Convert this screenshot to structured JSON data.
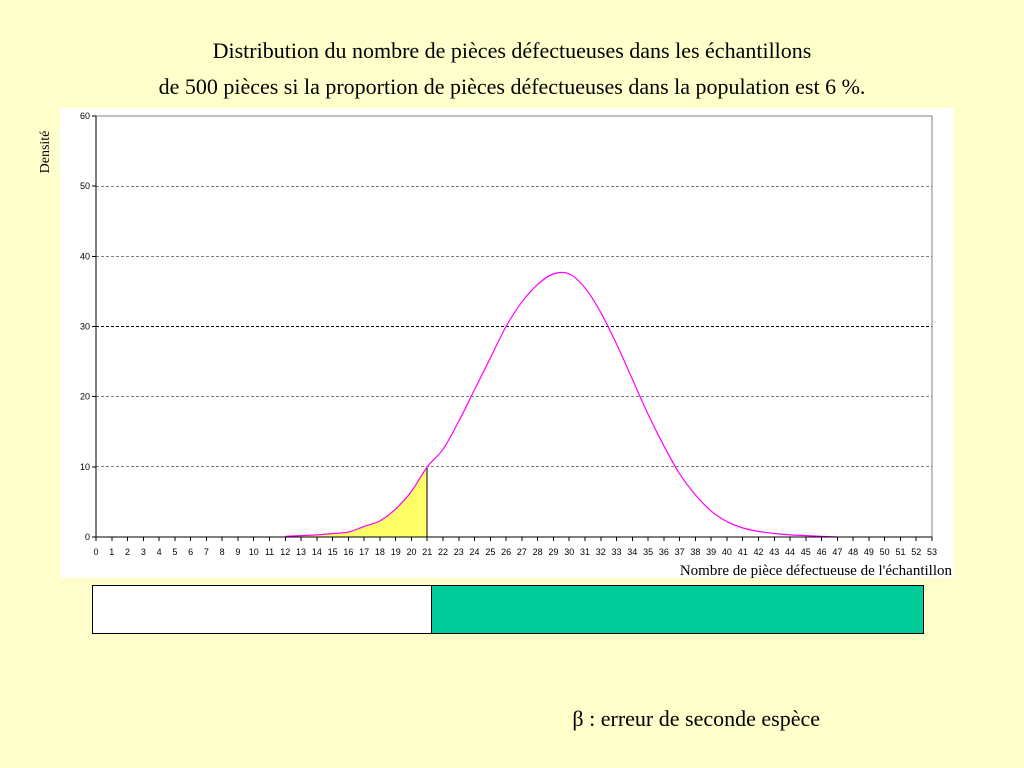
{
  "title_line1": "Distribution du nombre de pièces défectueuses dans les échantillons",
  "title_line2": "de 500 pièces si la proportion de pièces défectueuses dans la population est 6 %.",
  "caption_symbol": "β",
  "caption_text": " : erreur de seconde espèce",
  "colors": {
    "background": "#FFFFCC",
    "curve": "#FF00FF",
    "shaded_area": "#FFFF66",
    "rejection_zone": "#00CC99",
    "acceptance_zone": "#FFFFFF"
  },
  "chart_data": {
    "type": "line",
    "title": "",
    "xlabel": "Nombre de pièce défectueuse de l'échantillon",
    "ylabel": "Densité",
    "xlim": [
      0,
      53
    ],
    "ylim": [
      0,
      60
    ],
    "yticks": [
      0,
      10,
      20,
      30,
      40,
      50,
      60
    ],
    "xticks": [
      0,
      1,
      2,
      3,
      4,
      5,
      6,
      7,
      8,
      9,
      10,
      11,
      12,
      13,
      14,
      15,
      16,
      17,
      18,
      19,
      20,
      21,
      22,
      23,
      24,
      25,
      26,
      27,
      28,
      29,
      30,
      31,
      32,
      33,
      34,
      35,
      36,
      37,
      38,
      39,
      40,
      41,
      42,
      43,
      44,
      45,
      46,
      47,
      48,
      49,
      50,
      51,
      52,
      53
    ],
    "grid": "horizontal-dashed",
    "series": [
      {
        "x": [
          12,
          13,
          14,
          15,
          16,
          17,
          18,
          19,
          20,
          21,
          22,
          23,
          24,
          25,
          26,
          27,
          28,
          29,
          30,
          31,
          32,
          33,
          34,
          35,
          36,
          37,
          38,
          39,
          40,
          41,
          42,
          43,
          44,
          45,
          46,
          47
        ],
        "y": [
          0.1,
          0.2,
          0.3,
          0.5,
          0.7,
          1.5,
          2.3,
          4.0,
          6.5,
          10.0,
          12.5,
          16.5,
          21.0,
          25.5,
          30.0,
          33.5,
          36.0,
          37.5,
          37.5,
          35.5,
          32.0,
          27.5,
          22.5,
          17.5,
          13.0,
          9.0,
          6.0,
          3.7,
          2.2,
          1.3,
          0.8,
          0.5,
          0.3,
          0.2,
          0.1,
          0.0
        ]
      }
    ],
    "shaded_region": {
      "from_x": 12,
      "to_x": 21,
      "label": "β"
    }
  }
}
